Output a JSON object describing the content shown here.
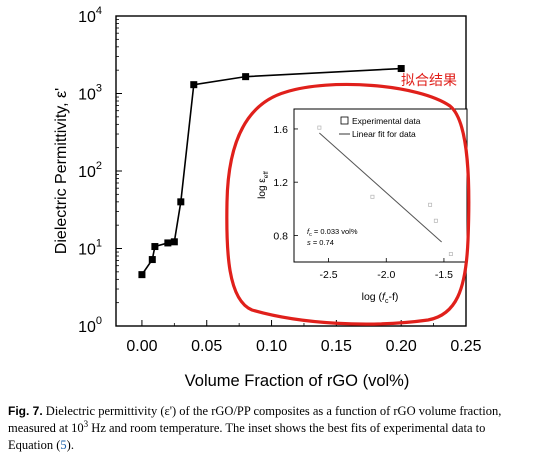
{
  "chart_data": [
    {
      "type": "line",
      "ylabel": "Dielectric Permittivity, ε'",
      "xlabel": "Volume Fraction of rGO (vol%)",
      "yscale": "log",
      "xlim": [
        -0.02,
        0.25
      ],
      "ylim": [
        1,
        10000
      ],
      "xticks": [
        "0.00",
        "0.05",
        "0.10",
        "0.15",
        "0.20",
        "0.25"
      ],
      "yticks": [
        {
          "base": "10",
          "exp": "0"
        },
        {
          "base": "10",
          "exp": "1"
        },
        {
          "base": "10",
          "exp": "2"
        },
        {
          "base": "10",
          "exp": "3"
        },
        {
          "base": "10",
          "exp": "4"
        }
      ],
      "x": [
        0.0,
        0.008,
        0.01,
        0.02,
        0.025,
        0.03,
        0.04,
        0.08,
        0.2
      ],
      "y": [
        4.6,
        7.2,
        10.6,
        11.8,
        12.2,
        40,
        1300,
        1650,
        2100
      ],
      "marker": "square",
      "color": "#000000"
    },
    {
      "type": "scatter",
      "role": "inset",
      "xlabel_main": "log (",
      "xlabel_sub": "f",
      "xlabel_subsub": "c",
      "xlabel_tail": "-f)",
      "ylabel_main": "log ε",
      "ylabel_sub": "eff",
      "xlim": [
        -2.8,
        -1.3
      ],
      "ylim": [
        0.6,
        1.75
      ],
      "xticks": [
        "-2.5",
        "-2.0",
        "-1.5"
      ],
      "yticks": [
        "0.8",
        "1.2",
        "1.6"
      ],
      "points": {
        "x": [
          -2.58,
          -2.12,
          -1.62,
          -1.57,
          -1.44
        ],
        "y": [
          1.61,
          1.09,
          1.03,
          0.91,
          0.66
        ]
      },
      "fit_line": {
        "x": [
          -2.58,
          -1.52
        ],
        "y": [
          1.57,
          0.75
        ]
      },
      "legend": [
        "Experimental data",
        "Linear fit for data"
      ],
      "params": [
        {
          "name": "f",
          "sub": "c",
          "value": " = 0.033 vol%"
        },
        {
          "name": "s",
          "sub": "",
          "value": " = 0.74"
        }
      ],
      "marker_color": "#b4b4b4",
      "line_color": "#555555"
    }
  ],
  "annotation": {
    "text": "拟合结果",
    "color": "#e0201b"
  },
  "highlight_color": "#e0201b",
  "caption": {
    "label": "Fig. 7.",
    "text_1": " Dielectric permittivity (ε') of the rGO/PP composites as a function of rGO volume fraction, measured at 10",
    "sup": "3",
    "text_2": " Hz and room temperature. The inset shows the best fits of experimental data to Equation (",
    "ref": "5",
    "text_3": ")."
  }
}
